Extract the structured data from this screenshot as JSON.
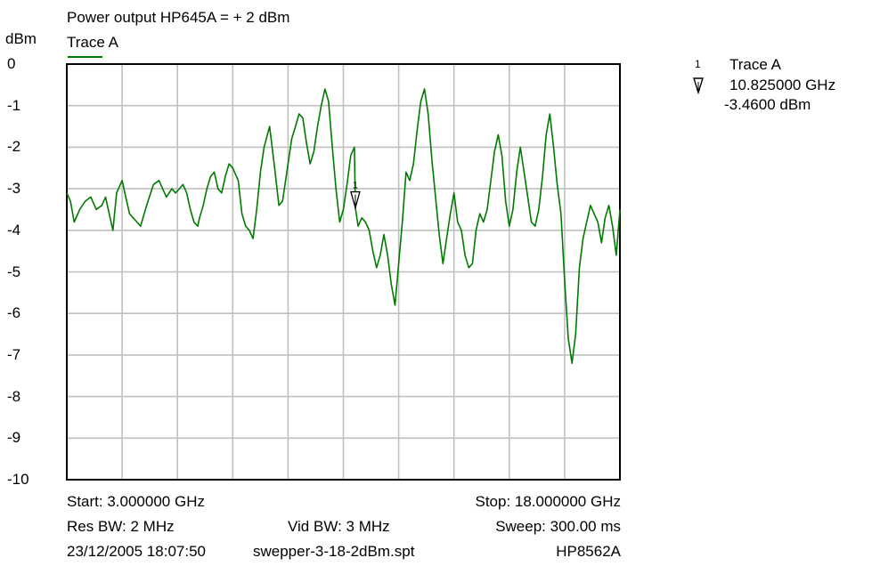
{
  "title": "Power output HP645A = + 2 dBm",
  "yunit": "dBm",
  "legend": {
    "label": "Trace A",
    "color": "#007a00"
  },
  "marker": {
    "number": "1",
    "trace": "Trace A",
    "frequency": "10.825000 GHz",
    "level": "-3.4600 dBm",
    "x_ghz": 10.825,
    "y_dbm": -3.46
  },
  "footer": {
    "start": "Start: 3.000000 GHz",
    "stop": "Stop: 18.000000 GHz",
    "res_bw": "Res BW: 2 MHz",
    "vid_bw": "Vid BW: 3 MHz",
    "sweep": "Sweep: 300.00 ms",
    "timestamp": "23/12/2005 18:07:50",
    "filename": "swepper-3-18-2dBm.spt",
    "instrument": "HP8562A"
  },
  "chart_data": {
    "type": "line",
    "title": "Power output HP645A = + 2 dBm",
    "ylabel": "dBm",
    "xlim": [
      3.0,
      18.0
    ],
    "ylim": [
      -10,
      0
    ],
    "xunit": "GHz",
    "grid": true,
    "yticks": [
      "0",
      "-1",
      "-2",
      "-3",
      "-4",
      "-5",
      "-6",
      "-7",
      "-8",
      "-9",
      "-10"
    ],
    "series": [
      {
        "name": "Trace A",
        "color": "#007a00",
        "x": [
          3.0,
          3.1,
          3.2,
          3.35,
          3.5,
          3.65,
          3.8,
          3.95,
          4.05,
          4.15,
          4.25,
          4.35,
          4.5,
          4.6,
          4.7,
          4.8,
          4.9,
          5.0,
          5.1,
          5.2,
          5.35,
          5.5,
          5.6,
          5.7,
          5.85,
          5.95,
          6.05,
          6.15,
          6.25,
          6.35,
          6.45,
          6.55,
          6.6,
          6.7,
          6.8,
          6.9,
          7.0,
          7.1,
          7.2,
          7.3,
          7.4,
          7.5,
          7.65,
          7.75,
          7.85,
          7.95,
          8.05,
          8.15,
          8.25,
          8.35,
          8.5,
          8.65,
          8.75,
          8.85,
          9.0,
          9.1,
          9.2,
          9.3,
          9.4,
          9.5,
          9.6,
          9.7,
          9.8,
          9.9,
          10.0,
          10.1,
          10.2,
          10.3,
          10.4,
          10.5,
          10.6,
          10.7,
          10.8,
          10.825,
          10.9,
          11.0,
          11.1,
          11.2,
          11.3,
          11.4,
          11.5,
          11.6,
          11.7,
          11.8,
          11.9,
          12.0,
          12.1,
          12.2,
          12.3,
          12.4,
          12.5,
          12.6,
          12.7,
          12.8,
          12.9,
          13.0,
          13.1,
          13.2,
          13.3,
          13.4,
          13.5,
          13.6,
          13.7,
          13.8,
          13.9,
          14.0,
          14.1,
          14.2,
          14.3,
          14.4,
          14.5,
          14.6,
          14.7,
          14.8,
          14.9,
          15.0,
          15.1,
          15.2,
          15.3,
          15.4,
          15.5,
          15.6,
          15.7,
          15.8,
          15.9,
          16.0,
          16.1,
          16.2,
          16.3,
          16.4,
          16.5,
          16.6,
          16.7,
          16.8,
          16.9,
          17.0,
          17.1,
          17.2,
          17.3,
          17.4,
          17.5,
          17.6,
          17.7,
          17.8,
          17.9,
          18.0
        ],
        "values": [
          -3.1,
          -3.3,
          -3.8,
          -3.5,
          -3.3,
          -3.2,
          -3.5,
          -3.4,
          -3.2,
          -3.6,
          -4.0,
          -3.1,
          -2.8,
          -3.2,
          -3.6,
          -3.7,
          -3.8,
          -3.9,
          -3.6,
          -3.3,
          -2.9,
          -2.8,
          -3.0,
          -3.2,
          -3.0,
          -3.1,
          -3.0,
          -2.9,
          -3.1,
          -3.5,
          -3.8,
          -3.9,
          -3.7,
          -3.4,
          -3.0,
          -2.7,
          -2.6,
          -3.0,
          -3.1,
          -2.7,
          -2.4,
          -2.5,
          -2.8,
          -3.6,
          -3.9,
          -4.0,
          -4.2,
          -3.5,
          -2.6,
          -2.0,
          -1.5,
          -2.6,
          -3.4,
          -3.3,
          -2.4,
          -1.8,
          -1.5,
          -1.2,
          -1.3,
          -1.9,
          -2.4,
          -2.1,
          -1.5,
          -1.0,
          -0.6,
          -0.9,
          -2.0,
          -3.0,
          -3.8,
          -3.5,
          -2.9,
          -2.2,
          -2.0,
          -3.46,
          -3.9,
          -3.7,
          -3.8,
          -4.0,
          -4.5,
          -4.9,
          -4.6,
          -4.1,
          -4.6,
          -5.3,
          -5.8,
          -4.8,
          -3.8,
          -2.6,
          -2.8,
          -2.4,
          -1.6,
          -0.9,
          -0.6,
          -1.2,
          -2.3,
          -3.2,
          -4.1,
          -4.8,
          -4.2,
          -3.6,
          -3.1,
          -3.8,
          -4.0,
          -4.6,
          -4.9,
          -4.8,
          -4.0,
          -3.6,
          -3.8,
          -3.5,
          -2.8,
          -2.1,
          -1.7,
          -2.2,
          -3.3,
          -3.9,
          -3.5,
          -2.6,
          -2.0,
          -2.6,
          -3.2,
          -3.8,
          -3.9,
          -3.5,
          -2.7,
          -1.7,
          -1.2,
          -2.0,
          -2.9,
          -3.6,
          -5.2,
          -6.6,
          -7.2,
          -6.5,
          -4.9,
          -4.2,
          -3.8,
          -3.4,
          -3.6,
          -3.8,
          -4.3,
          -3.7,
          -3.4,
          -3.9,
          -4.6,
          -3.5
        ]
      }
    ]
  }
}
